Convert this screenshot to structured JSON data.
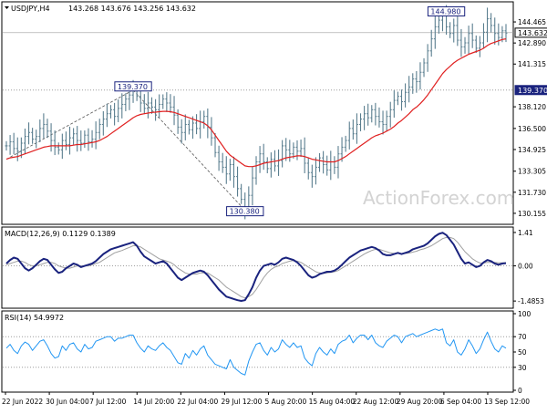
{
  "header": {
    "symbol_timeframe": "USDJPY,H4",
    "ohlc": "143.268 143.676 143.256 143.632"
  },
  "watermark": "ActionForex.com",
  "colors": {
    "price_bars": "#5a7e8f",
    "moving_average": "#e02020",
    "macd_line": "#1a237e",
    "macd_signal": "#a0a0a0",
    "rsi_line": "#2196f3",
    "grid_dotted": "#9e9e9e",
    "watermark": "#d3d3d3",
    "fib_line": "#555555"
  },
  "chart_data": [
    {
      "panel": "price",
      "type": "line",
      "title": "USDJPY,H4",
      "x_labels": [
        "22 Jun 2022",
        "30 Jun 04:00",
        "7 Jul 12:00",
        "14 Jul 20:00",
        "22 Jul 04:00",
        "29 Jul 12:00",
        "5 Aug 20:00",
        "15 Aug 04:00",
        "22 Aug 12:00",
        "29 Aug 20:00",
        "6 Sep 04:00",
        "13 Sep 12:00"
      ],
      "y_ticks": [
        130.155,
        131.73,
        133.305,
        134.925,
        136.5,
        138.12,
        141.315,
        142.89,
        144.465
      ],
      "ylim": [
        129.4,
        145.9
      ],
      "current_price_label": "143.632",
      "current_price": 143.632,
      "current_line": 143.66,
      "level_label": "139.370",
      "level": 139.37,
      "annotations": [
        {
          "label": "139.370",
          "index": 34,
          "value": 139.37
        },
        {
          "label": "130.380",
          "index": 64,
          "value": 130.38
        },
        {
          "label": "144.980",
          "index": 118,
          "value": 144.98
        }
      ],
      "fib_lines": [
        {
          "from_index": 0,
          "from_value": 134.2,
          "to_index": 34,
          "to_value": 139.37
        },
        {
          "from_index": 34,
          "from_value": 139.37,
          "to_index": 64,
          "to_value": 130.38
        }
      ],
      "series": [
        {
          "id": "price",
          "kind": "close",
          "values": [
            135.2,
            135.5,
            135.0,
            134.8,
            135.4,
            135.9,
            136.2,
            135.7,
            135.9,
            136.5,
            136.8,
            136.3,
            135.6,
            135.1,
            134.9,
            135.6,
            135.3,
            135.8,
            136.1,
            135.6,
            135.4,
            136.0,
            135.5,
            135.7,
            136.2,
            136.8,
            137.2,
            137.6,
            137.9,
            137.4,
            138.0,
            138.3,
            138.7,
            139.0,
            139.37,
            138.9,
            138.4,
            138.0,
            138.4,
            138.1,
            137.9,
            138.3,
            138.7,
            138.4,
            138.1,
            137.5,
            136.6,
            136.2,
            136.8,
            136.4,
            136.9,
            136.5,
            137.0,
            137.4,
            136.6,
            135.8,
            134.7,
            134.0,
            133.6,
            133.1,
            133.8,
            132.9,
            132.0,
            131.2,
            130.38,
            131.5,
            132.8,
            134.0,
            134.6,
            134.0,
            133.5,
            134.2,
            133.7,
            134.1,
            135.2,
            134.9,
            134.6,
            135.1,
            134.8,
            135.0,
            133.9,
            133.2,
            132.9,
            133.6,
            134.3,
            133.8,
            133.4,
            134.0,
            133.6,
            134.6,
            135.1,
            135.6,
            136.5,
            136.1,
            136.8,
            137.2,
            137.6,
            137.3,
            137.9,
            137.4,
            137.0,
            136.8,
            137.4,
            137.9,
            138.6,
            138.9,
            138.5,
            139.2,
            139.6,
            140.2,
            140.0,
            140.7,
            141.4,
            142.3,
            143.2,
            144.1,
            144.6,
            144.98,
            144.1,
            143.6,
            144.2,
            143.1,
            142.6,
            142.9,
            143.6,
            143.1,
            142.5,
            142.9,
            143.7,
            144.7,
            144.2,
            143.6,
            143.3,
            143.8,
            143.632
          ]
        },
        {
          "id": "ma",
          "kind": "moving_average",
          "values": [
            134.2,
            134.3,
            134.35,
            134.4,
            134.5,
            134.6,
            134.7,
            134.8,
            134.9,
            135.0,
            135.1,
            135.15,
            135.2,
            135.2,
            135.2,
            135.2,
            135.2,
            135.2,
            135.25,
            135.3,
            135.3,
            135.35,
            135.4,
            135.45,
            135.5,
            135.6,
            135.75,
            135.9,
            136.1,
            136.3,
            136.5,
            136.7,
            136.9,
            137.1,
            137.3,
            137.45,
            137.55,
            137.6,
            137.65,
            137.7,
            137.72,
            137.75,
            137.78,
            137.78,
            137.75,
            137.7,
            137.6,
            137.5,
            137.4,
            137.3,
            137.2,
            137.1,
            137.0,
            136.9,
            136.7,
            136.4,
            136.0,
            135.6,
            135.2,
            134.8,
            134.5,
            134.3,
            134.1,
            133.9,
            133.7,
            133.65,
            133.65,
            133.7,
            133.8,
            133.9,
            133.95,
            134.0,
            134.05,
            134.1,
            134.2,
            134.3,
            134.35,
            134.4,
            134.45,
            134.45,
            134.4,
            134.3,
            134.2,
            134.15,
            134.1,
            134.05,
            134.0,
            134.0,
            134.0,
            134.1,
            134.25,
            134.4,
            134.6,
            134.8,
            135.0,
            135.2,
            135.4,
            135.6,
            135.8,
            135.95,
            136.05,
            136.15,
            136.3,
            136.45,
            136.65,
            136.9,
            137.1,
            137.35,
            137.6,
            137.9,
            138.1,
            138.35,
            138.65,
            139.0,
            139.4,
            139.8,
            140.2,
            140.6,
            140.9,
            141.15,
            141.4,
            141.6,
            141.75,
            141.9,
            142.05,
            142.15,
            142.25,
            142.35,
            142.5,
            142.7,
            142.85,
            142.95,
            143.05,
            143.15,
            143.2
          ]
        }
      ]
    },
    {
      "panel": "macd",
      "type": "line",
      "title": "MACD(12,26,9) 0.1129 0.1389",
      "y_ticks_labels": [
        "1.41",
        "0.00",
        "-1.4853"
      ],
      "y_ticks": [
        1.41,
        0.0,
        -1.4853
      ],
      "ylim": [
        -1.75,
        1.6
      ],
      "series": [
        {
          "id": "macd",
          "values": [
            0.1,
            0.25,
            0.35,
            0.3,
            0.1,
            -0.1,
            -0.2,
            -0.1,
            0.05,
            0.2,
            0.3,
            0.25,
            0.05,
            -0.15,
            -0.3,
            -0.25,
            -0.1,
            0.0,
            0.1,
            0.05,
            -0.05,
            0.0,
            0.05,
            0.1,
            0.2,
            0.35,
            0.5,
            0.6,
            0.7,
            0.75,
            0.8,
            0.85,
            0.9,
            0.95,
            1.0,
            0.85,
            0.6,
            0.4,
            0.3,
            0.2,
            0.1,
            0.15,
            0.2,
            0.1,
            -0.1,
            -0.3,
            -0.5,
            -0.6,
            -0.5,
            -0.4,
            -0.3,
            -0.25,
            -0.2,
            -0.25,
            -0.4,
            -0.6,
            -0.8,
            -1.0,
            -1.15,
            -1.3,
            -1.35,
            -1.4,
            -1.45,
            -1.48,
            -1.45,
            -1.2,
            -0.9,
            -0.5,
            -0.2,
            0.0,
            0.05,
            0.1,
            0.05,
            0.15,
            0.3,
            0.35,
            0.3,
            0.25,
            0.15,
            0.0,
            -0.2,
            -0.4,
            -0.5,
            -0.45,
            -0.35,
            -0.3,
            -0.25,
            -0.25,
            -0.2,
            -0.1,
            0.05,
            0.2,
            0.35,
            0.45,
            0.55,
            0.65,
            0.7,
            0.75,
            0.8,
            0.75,
            0.65,
            0.5,
            0.45,
            0.45,
            0.5,
            0.55,
            0.5,
            0.55,
            0.6,
            0.7,
            0.75,
            0.8,
            0.85,
            0.95,
            1.1,
            1.25,
            1.35,
            1.4,
            1.3,
            1.1,
            0.9,
            0.6,
            0.3,
            0.1,
            0.15,
            0.05,
            -0.05,
            0.0,
            0.15,
            0.25,
            0.2,
            0.1,
            0.05,
            0.1,
            0.1129
          ]
        },
        {
          "id": "signal",
          "values": [
            0.05,
            0.1,
            0.15,
            0.2,
            0.2,
            0.15,
            0.05,
            0.0,
            0.0,
            0.05,
            0.1,
            0.15,
            0.15,
            0.1,
            0.0,
            -0.05,
            -0.1,
            -0.1,
            -0.05,
            0.0,
            0.0,
            0.0,
            0.0,
            0.05,
            0.1,
            0.15,
            0.25,
            0.35,
            0.45,
            0.55,
            0.6,
            0.65,
            0.72,
            0.78,
            0.85,
            0.85,
            0.8,
            0.7,
            0.6,
            0.5,
            0.4,
            0.3,
            0.25,
            0.2,
            0.15,
            0.05,
            -0.1,
            -0.2,
            -0.3,
            -0.35,
            -0.35,
            -0.35,
            -0.3,
            -0.3,
            -0.3,
            -0.4,
            -0.5,
            -0.6,
            -0.75,
            -0.9,
            -1.0,
            -1.1,
            -1.2,
            -1.3,
            -1.35,
            -1.3,
            -1.2,
            -1.0,
            -0.75,
            -0.5,
            -0.3,
            -0.15,
            -0.05,
            0.0,
            0.1,
            0.15,
            0.2,
            0.22,
            0.2,
            0.15,
            0.05,
            -0.05,
            -0.15,
            -0.25,
            -0.3,
            -0.32,
            -0.3,
            -0.28,
            -0.25,
            -0.2,
            -0.1,
            0.0,
            0.1,
            0.2,
            0.3,
            0.4,
            0.5,
            0.58,
            0.65,
            0.7,
            0.7,
            0.65,
            0.6,
            0.55,
            0.52,
            0.52,
            0.52,
            0.52,
            0.54,
            0.58,
            0.62,
            0.68,
            0.72,
            0.78,
            0.85,
            0.95,
            1.05,
            1.15,
            1.2,
            1.2,
            1.15,
            1.0,
            0.8,
            0.6,
            0.45,
            0.3,
            0.2,
            0.12,
            0.12,
            0.15,
            0.15,
            0.15,
            0.13,
            0.13,
            0.1389
          ]
        }
      ]
    },
    {
      "panel": "rsi",
      "type": "line",
      "title": "RSI(14) 54.9972",
      "y_ticks": [
        100,
        70,
        50,
        30,
        0
      ],
      "ylim": [
        0,
        100
      ],
      "dotted_levels": [
        70,
        30
      ],
      "series": [
        {
          "id": "rsi",
          "values": [
            55,
            60,
            52,
            48,
            58,
            63,
            60,
            52,
            58,
            64,
            66,
            58,
            48,
            42,
            44,
            58,
            52,
            60,
            62,
            54,
            50,
            60,
            54,
            56,
            64,
            66,
            68,
            70,
            70,
            64,
            68,
            68,
            70,
            72,
            72,
            62,
            55,
            50,
            58,
            54,
            52,
            58,
            62,
            56,
            52,
            44,
            36,
            34,
            48,
            42,
            52,
            46,
            54,
            58,
            46,
            40,
            34,
            32,
            30,
            28,
            40,
            30,
            26,
            22,
            20,
            38,
            50,
            60,
            62,
            52,
            46,
            56,
            50,
            54,
            66,
            60,
            56,
            62,
            56,
            58,
            42,
            36,
            32,
            48,
            56,
            50,
            46,
            54,
            48,
            60,
            64,
            66,
            72,
            62,
            68,
            72,
            72,
            66,
            72,
            62,
            58,
            56,
            64,
            68,
            72,
            70,
            62,
            70,
            72,
            74,
            70,
            72,
            74,
            76,
            78,
            80,
            78,
            80,
            62,
            58,
            66,
            50,
            46,
            54,
            66,
            58,
            48,
            54,
            66,
            76,
            64,
            54,
            50,
            58,
            54.9972
          ]
        }
      ]
    }
  ]
}
